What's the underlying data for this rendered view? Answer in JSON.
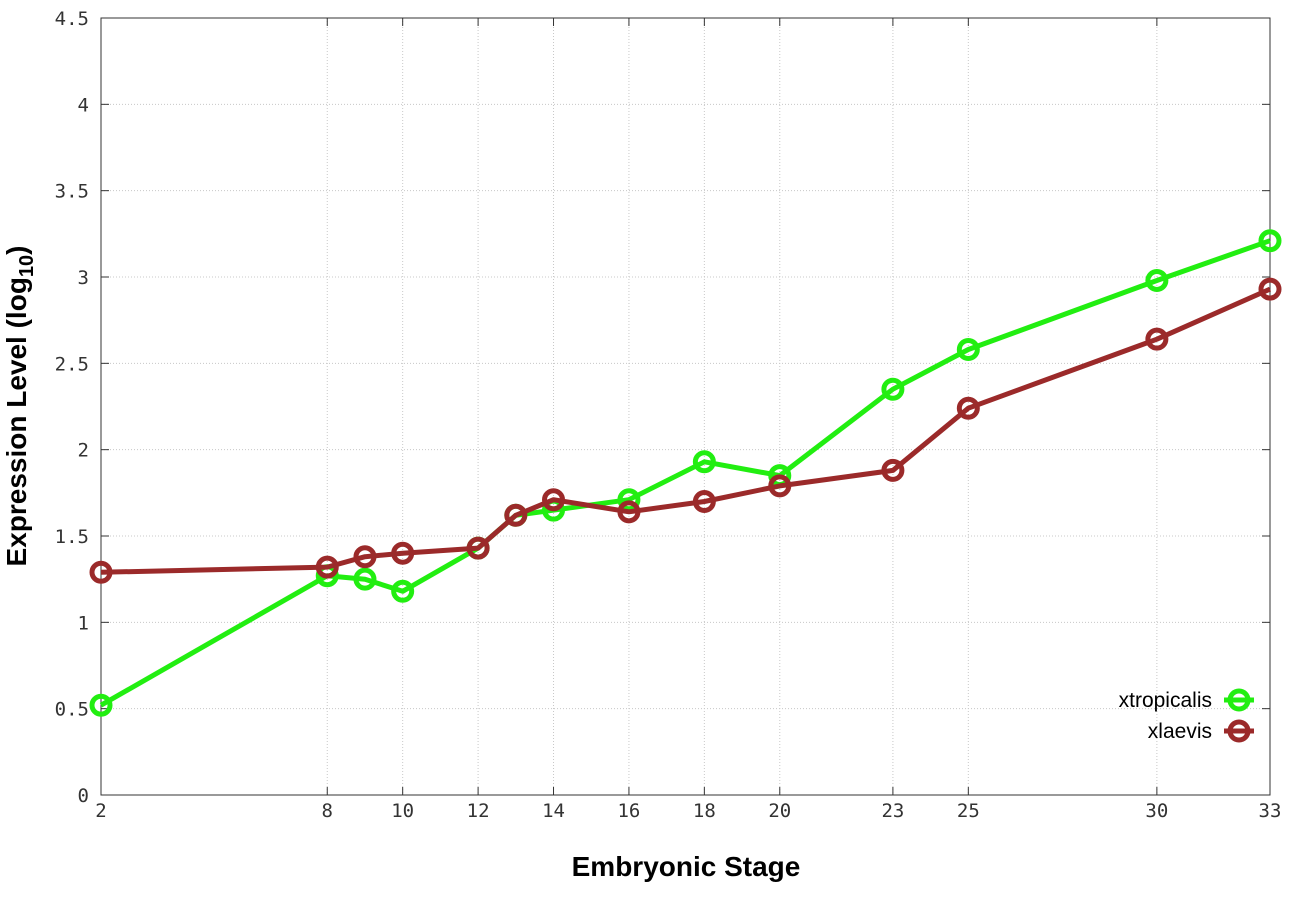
{
  "chart_data": {
    "type": "line",
    "xlabel": "Embryonic Stage",
    "ylabel_main": "Expression Level (log",
    "ylabel_sub": "10",
    "ylabel_close": ")",
    "xlim": [
      2,
      33
    ],
    "ylim": [
      0,
      4.5
    ],
    "x_ticks": [
      2,
      8,
      10,
      12,
      14,
      16,
      18,
      20,
      23,
      25,
      30,
      33
    ],
    "y_ticks": [
      0,
      0.5,
      1,
      1.5,
      2,
      2.5,
      3,
      3.5,
      4,
      4.5
    ],
    "y_tick_labels": [
      "0",
      "0.5",
      "1",
      "1.5",
      "2",
      "2.5",
      "3",
      "3.5",
      "4",
      "4.5"
    ],
    "grid": true,
    "legend_position": "bottom-right",
    "series": [
      {
        "name": "xtropicalis",
        "color": "#22ee11",
        "x": [
          2,
          8,
          9,
          10,
          12,
          13,
          14,
          16,
          18,
          20,
          23,
          25,
          30,
          33
        ],
        "y": [
          0.52,
          1.27,
          1.25,
          1.18,
          1.43,
          1.62,
          1.65,
          1.71,
          1.93,
          1.85,
          2.35,
          2.58,
          2.98,
          3.21
        ]
      },
      {
        "name": "xlaevis",
        "color": "#9b2a2a",
        "x": [
          2,
          8,
          9,
          10,
          12,
          13,
          14,
          16,
          18,
          20,
          23,
          25,
          30,
          33
        ],
        "y": [
          1.29,
          1.32,
          1.38,
          1.4,
          1.43,
          1.62,
          1.71,
          1.64,
          1.7,
          1.79,
          1.88,
          2.24,
          2.64,
          2.93
        ]
      }
    ]
  }
}
